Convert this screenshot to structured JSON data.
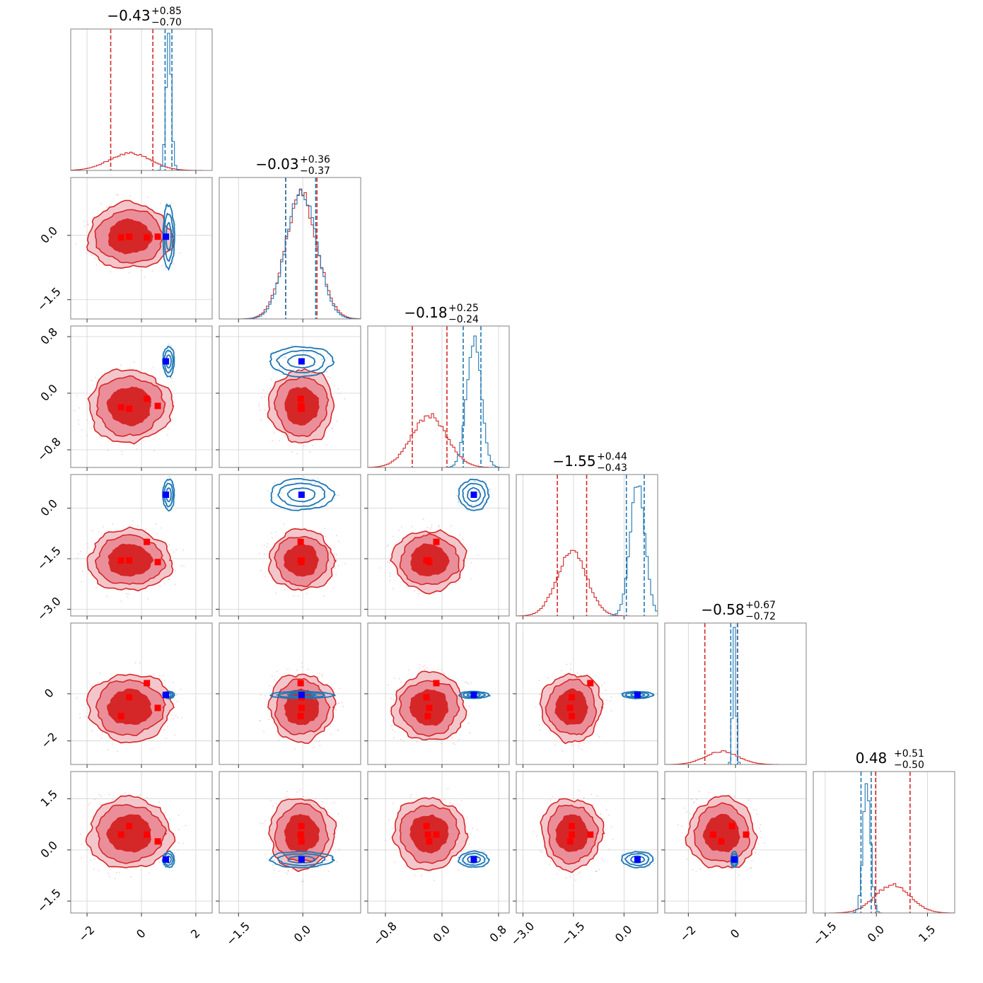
{
  "chart_data": {
    "type": "corner",
    "n_params": 6,
    "series": [
      {
        "name": "",
        "color": "#d62728"
      },
      {
        "name": "",
        "color": "#1f77b4"
      }
    ],
    "titles": [
      {
        "center": "−0.43",
        "plus": "+0.85",
        "minus": "−0.70"
      },
      {
        "center": "−0.03",
        "plus": "+0.36",
        "minus": "−0.37"
      },
      {
        "center": "−0.18",
        "plus": "+0.25",
        "minus": "−0.24"
      },
      {
        "center": "−1.55",
        "plus": "+0.44",
        "minus": "−0.43"
      },
      {
        "center": "−0.58",
        "plus": "+0.67",
        "minus": "−0.72"
      },
      {
        "center": "0.48",
        "plus": "+0.51",
        "minus": "−0.50"
      }
    ],
    "axes": [
      {
        "range": [
          -2.6,
          2.6
        ],
        "ticks": [
          -2,
          0,
          2
        ],
        "tick_labels": [
          "−2",
          "0",
          "2"
        ]
      },
      {
        "range": [
          -1.95,
          1.35
        ],
        "ticks": [
          -1.5,
          0.0
        ],
        "tick_labels": [
          "−1.5",
          "0.0"
        ],
        "x_ticks": [
          -1.5,
          0.0
        ],
        "x_tick_labels": [
          "−1.5",
          "0.0"
        ]
      },
      {
        "range": [
          -1.05,
          0.95
        ],
        "ticks": [
          -0.8,
          0.0,
          0.8
        ],
        "tick_labels": [
          "−0.8",
          "0.0",
          "0.8"
        ]
      },
      {
        "range": [
          -3.2,
          1.0
        ],
        "ticks": [
          -3.0,
          -1.5,
          0.0
        ],
        "tick_labels": [
          "−3.0",
          "−1.5",
          "0.0"
        ]
      },
      {
        "range": [
          -3.0,
          3.0
        ],
        "ticks": [
          -2,
          0
        ],
        "tick_labels": [
          "−2",
          "0"
        ]
      },
      {
        "range": [
          -1.85,
          2.3
        ],
        "ticks": [
          -1.5,
          0.0,
          1.5
        ],
        "tick_labels": [
          "−1.5",
          "0.0",
          "1.5"
        ]
      }
    ],
    "red_mean": [
      -0.43,
      -0.03,
      -0.18,
      -1.55,
      -0.58,
      0.48
    ],
    "red_sd": [
      0.75,
      0.37,
      0.25,
      0.44,
      0.7,
      0.51
    ],
    "red_quantiles": [
      [
        -1.13,
        0.42
      ],
      [
        -0.4,
        0.33
      ],
      [
        -0.42,
        0.07
      ],
      [
        -1.98,
        -1.11
      ],
      [
        -1.3,
        0.09
      ],
      [
        -0.02,
        0.99
      ]
    ],
    "blue_mean": [
      1.0,
      -0.03,
      0.45,
      0.4,
      -0.05,
      -0.28
    ],
    "blue_sd": [
      0.1,
      0.35,
      0.1,
      0.22,
      0.07,
      0.11
    ],
    "blue_quantiles": [
      [
        0.87,
        1.12
      ],
      [
        -0.4,
        0.3
      ],
      [
        0.3,
        0.55
      ],
      [
        0.07,
        0.6
      ],
      [
        -0.2,
        0.08
      ],
      [
        -0.45,
        -0.15
      ]
    ],
    "red_markers": [
      [
        -0.75,
        -0.05,
        -0.2,
        -1.55,
        -0.95,
        0.45
      ],
      [
        -0.45,
        -0.03,
        -0.22,
        -1.55,
        -0.15,
        0.7
      ],
      [
        0.2,
        -0.05,
        -0.08,
        -1.0,
        0.45,
        0.45
      ],
      [
        0.6,
        -0.03,
        -0.18,
        -1.6,
        -0.6,
        0.25
      ]
    ],
    "blue_marker": [
      0.9,
      -0.03,
      0.45,
      0.4,
      -0.05,
      -0.28
    ],
    "grid": true
  }
}
